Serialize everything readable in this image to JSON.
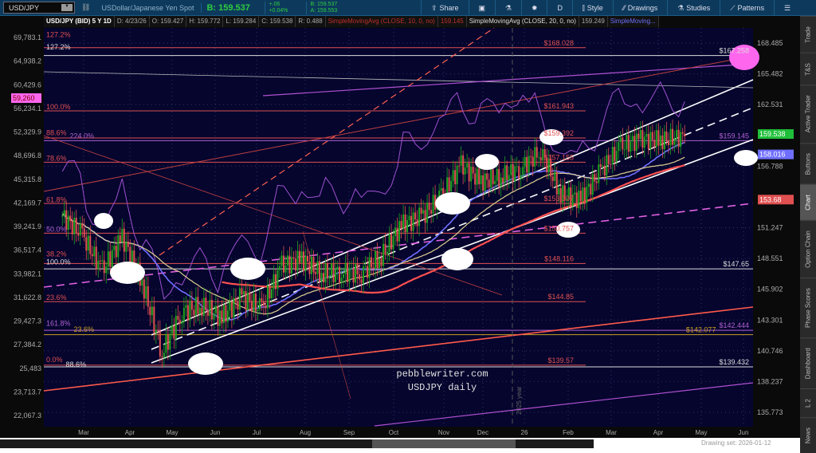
{
  "header": {
    "symbol": "USD/JPY",
    "description": "USDollar/Japanese Yen Spot",
    "bid": "B: 159.537",
    "change": "+.06",
    "change_pct": "+0.04%",
    "bid_small": "B: 159.537",
    "ask_small": "A: 159.553"
  },
  "toolbar": [
    {
      "icon": "share-icon",
      "label": "Share"
    },
    {
      "icon": "alert-icon",
      "label": ""
    },
    {
      "icon": "flask-icon",
      "label": ""
    },
    {
      "icon": "gear-icon",
      "label": ""
    },
    {
      "icon": "",
      "label": "D"
    },
    {
      "icon": "candle-icon",
      "label": "Style"
    },
    {
      "icon": "pencil-icon",
      "label": "Drawings"
    },
    {
      "icon": "flask-icon",
      "label": "Studies"
    },
    {
      "icon": "pattern-icon",
      "label": "Patterns"
    },
    {
      "icon": "menu-icon",
      "label": ""
    }
  ],
  "infobar": {
    "title": "USD/JPY (BID) 5 Y 1D",
    "date": "D: 4/23/26",
    "open": "O: 159.427",
    "high": "H: 159.772",
    "low": "L: 159.284",
    "close": "C: 159.538",
    "range": "R: 0.488",
    "sma10": "SimpleMovingAvg (CLOSE, 10, 0, no)",
    "sma10_val": "159.145",
    "sma20": "SimpleMovingAvg (CLOSE, 20, 0, no)",
    "sma20_val": "159.249",
    "sma_more": "SimpleMoving..."
  },
  "side_tabs": [
    "Trade",
    "T&S",
    "Active Trader",
    "Buttons",
    "Chart",
    "Option Chain",
    "Phase Scores",
    "Dashboard",
    "L 2",
    "News"
  ],
  "selected_tab": "Chart",
  "watermark": [
    "pebblewriter.com",
    "USDJPY daily"
  ],
  "year_marker": "2025 year",
  "drawing_set": "Drawing set: 2026-01-12",
  "colors": {
    "background": "#05052e",
    "up": "#1fa31f",
    "down": "#e05050",
    "last_price": "#1fbf3a",
    "sma_blue": "#6f6fff",
    "sma_red": "#e05050",
    "btc": "#a050d0"
  },
  "chart_data": {
    "type": "candlestick",
    "right_axis": {
      "ticks": [
        "168.485",
        "165.482",
        "162.531",
        "156.788",
        "151.247",
        "148.551",
        "145.902",
        "143.301",
        "140.746",
        "138.237",
        "135.773"
      ],
      "scale": "log",
      "range": [
        135.773,
        168.485
      ]
    },
    "left_axis": {
      "ticks": [
        "69,783.1",
        "64,938.2",
        "60,429.6",
        "56,234.1",
        "52,329.9",
        "48,696.8",
        "45,315.8",
        "42,169.7",
        "39,241.9",
        "36,517.4",
        "33,982.1",
        "31,622.8",
        "29,427.3",
        "27,384.2",
        "25,483",
        "23,713.7",
        "22,067.3"
      ],
      "badge": "59,260"
    },
    "x_ticks": [
      "Mar",
      "Apr",
      "May",
      "Jun",
      "Jul",
      "Aug",
      "Sep",
      "Oct",
      "Nov",
      "Dec",
      "26",
      "Feb",
      "Mar",
      "Apr",
      "May",
      "Jun"
    ],
    "price_badges": [
      {
        "label": "159.538",
        "price": 159.538,
        "color": "#1fbf3a"
      },
      {
        "label": "158.016",
        "price": 158.016,
        "color": "#6f6fff"
      },
      {
        "label": "153.68",
        "price": 153.68,
        "color": "#e05050"
      }
    ],
    "levels": [
      {
        "label": "$168.028",
        "price": 168.03,
        "color": "#e05050"
      },
      {
        "label": "$167.258",
        "price": 167.26,
        "color": "#dddddd"
      },
      {
        "label": "$161.943",
        "price": 161.94,
        "color": "#e05050"
      },
      {
        "label": "$159.392",
        "price": 159.39,
        "color": "#e05050"
      },
      {
        "label": "$159.145",
        "price": 159.14,
        "color": "#b060d0"
      },
      {
        "label": "$157.155",
        "price": 157.15,
        "color": "#e05050"
      },
      {
        "label": "$153.397",
        "price": 153.4,
        "color": "#e05050"
      },
      {
        "label": "$150.757",
        "price": 150.76,
        "color": "#e05050"
      },
      {
        "label": "$148.116",
        "price": 148.12,
        "color": "#e05050"
      },
      {
        "label": "$147.65",
        "price": 147.65,
        "color": "#dddddd"
      },
      {
        "label": "$144.85",
        "price": 144.85,
        "color": "#e05050"
      },
      {
        "label": "$142.444",
        "price": 142.44,
        "color": "#b060d0"
      },
      {
        "label": "$142.077",
        "price": 142.08,
        "color": "#c8a020"
      },
      {
        "label": "$139.57",
        "price": 139.57,
        "color": "#e05050"
      },
      {
        "label": "$139.432",
        "price": 139.43,
        "color": "#dddddd"
      }
    ],
    "fib_labels": [
      {
        "label": "127.2%",
        "price": 168.9,
        "color": "#e05050"
      },
      {
        "label": "127.2%",
        "price": 167.7,
        "color": "#dddddd"
      },
      {
        "label": "100.0%",
        "price": 161.94,
        "color": "#e05050"
      },
      {
        "label": "88.6%",
        "price": 159.5,
        "color": "#e05050"
      },
      {
        "label": "224.0%",
        "price": 159.2,
        "color": "#b060d0"
      },
      {
        "label": "78.6%",
        "price": 157.15,
        "color": "#e05050"
      },
      {
        "label": "61.8%",
        "price": 153.39,
        "color": "#e05050"
      },
      {
        "label": "50.0%",
        "price": 150.76,
        "color": "#b060d0"
      },
      {
        "label": "38.2%",
        "price": 148.6,
        "color": "#e05050"
      },
      {
        "label": "100.0%",
        "price": 147.9,
        "color": "#dddddd"
      },
      {
        "label": "23.6%",
        "price": 144.85,
        "color": "#e05050"
      },
      {
        "label": "161.8%",
        "price": 142.7,
        "color": "#b060d0"
      },
      {
        "label": "23.6%",
        "price": 142.2,
        "color": "#c8a020"
      },
      {
        "label": "0.0%",
        "price": 139.7,
        "color": "#e05050"
      },
      {
        "label": "88.6%",
        "price": 139.3,
        "color": "#dddddd"
      }
    ],
    "closes": [
      {
        "d": "2025-02-10",
        "c": 152.3
      },
      {
        "d": "2025-02-24",
        "c": 150.6
      },
      {
        "d": "2025-03-10",
        "c": 147.5
      },
      {
        "d": "2025-03-24",
        "c": 150.4
      },
      {
        "d": "2025-04-07",
        "c": 146.5
      },
      {
        "d": "2025-04-21",
        "c": 140.6
      },
      {
        "d": "2025-05-05",
        "c": 144.0
      },
      {
        "d": "2025-05-19",
        "c": 144.5
      },
      {
        "d": "2025-06-02",
        "c": 143.5
      },
      {
        "d": "2025-06-16",
        "c": 145.3
      },
      {
        "d": "2025-06-30",
        "c": 144.2
      },
      {
        "d": "2025-07-14",
        "c": 147.9
      },
      {
        "d": "2025-07-28",
        "c": 148.5
      },
      {
        "d": "2025-08-11",
        "c": 147.2
      },
      {
        "d": "2025-08-25",
        "c": 147.4
      },
      {
        "d": "2025-09-08",
        "c": 147.3
      },
      {
        "d": "2025-09-22",
        "c": 148.7
      },
      {
        "d": "2025-10-06",
        "c": 151.5
      },
      {
        "d": "2025-10-20",
        "c": 152.2
      },
      {
        "d": "2025-11-03",
        "c": 154.0
      },
      {
        "d": "2025-11-17",
        "c": 156.9
      },
      {
        "d": "2025-12-01",
        "c": 155.4
      },
      {
        "d": "2025-12-15",
        "c": 155.8
      },
      {
        "d": "2025-12-29",
        "c": 156.6
      },
      {
        "d": "2026-01-12",
        "c": 158.2
      },
      {
        "d": "2026-01-26",
        "c": 154.2
      },
      {
        "d": "2026-02-09",
        "c": 153.8
      },
      {
        "d": "2026-02-23",
        "c": 156.3
      },
      {
        "d": "2026-03-09",
        "c": 158.6
      },
      {
        "d": "2026-03-23",
        "c": 159.3
      },
      {
        "d": "2026-04-06",
        "c": 159.2
      },
      {
        "d": "2026-04-23",
        "c": 159.54
      }
    ]
  }
}
